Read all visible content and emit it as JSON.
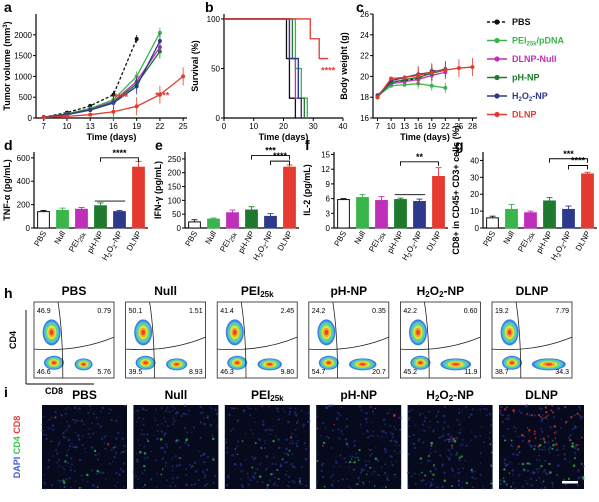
{
  "panel_letters": [
    "a",
    "b",
    "c",
    "d",
    "e",
    "f",
    "g",
    "h",
    "i"
  ],
  "colors": {
    "PBS": "#111111",
    "PEI25k/pDNA": "#39b54a",
    "DLNP-Null": "#c02fb8",
    "pH-NP": "#1f7a2e",
    "H2O2-NP": "#2d3a8c",
    "DLNP": "#e53a2f"
  },
  "legend": [
    "PBS",
    "PEI25k/pDNA",
    "DLNP-Null",
    "pH-NP",
    "H2O2-NP",
    "DLNP"
  ],
  "bar_categories": [
    "PBS",
    "Null",
    "PEI25k",
    "pH-NP",
    "H2O2-NP",
    "DLNP"
  ],
  "chart_data": [
    {
      "id": "a",
      "type": "line",
      "xlabel": "Time (days)",
      "ylabel": "Tumor volume (mm3)",
      "xticks": [
        7,
        10,
        13,
        16,
        19,
        22,
        25
      ],
      "yticks": [
        0,
        500,
        1000,
        1500,
        2000
      ],
      "xlim": [
        6,
        25.5
      ],
      "ylim": [
        0,
        2500
      ],
      "annotations": [
        {
          "text": "****",
          "x": 17,
          "y": 430
        },
        {
          "text": "****",
          "x": 22.3,
          "y": 470
        }
      ],
      "series": [
        {
          "key": "PBS",
          "dashed": true,
          "x": [
            7,
            10,
            13,
            16,
            19
          ],
          "y": [
            20,
            130,
            290,
            560,
            1900
          ]
        },
        {
          "key": "PEI25k/pDNA",
          "x": [
            7,
            10,
            13,
            16,
            19,
            22
          ],
          "y": [
            20,
            100,
            230,
            440,
            1000,
            2050
          ]
        },
        {
          "key": "DLNP-Null",
          "x": [
            7,
            10,
            13,
            16,
            19,
            22
          ],
          "y": [
            20,
            90,
            210,
            400,
            880,
            1700
          ]
        },
        {
          "key": "pH-NP",
          "x": [
            7,
            10,
            13,
            16,
            19,
            22
          ],
          "y": [
            20,
            90,
            200,
            380,
            820,
            1600
          ]
        },
        {
          "key": "H2O2-NP",
          "x": [
            7,
            10,
            13,
            16,
            19,
            22
          ],
          "y": [
            20,
            80,
            190,
            360,
            760,
            1850
          ]
        },
        {
          "key": "DLNP",
          "x": [
            7,
            10,
            13,
            16,
            19,
            22,
            25
          ],
          "y": [
            15,
            40,
            80,
            150,
            280,
            560,
            1000
          ]
        }
      ]
    },
    {
      "id": "b",
      "type": "line",
      "step": true,
      "xlabel": "Time (days)",
      "ylabel": "Survival (%)",
      "xticks": [
        0,
        10,
        20,
        30,
        40
      ],
      "yticks": [
        0,
        50,
        100
      ],
      "xlim": [
        0,
        40
      ],
      "ylim": [
        0,
        105
      ],
      "annotations": [
        {
          "text": "****",
          "x": 35,
          "y": 45
        }
      ],
      "series": [
        {
          "key": "PBS",
          "x": [
            0,
            19,
            21,
            22,
            24
          ],
          "y": [
            100,
            100,
            60,
            20,
            0
          ]
        },
        {
          "key": "PEI25k/pDNA",
          "x": [
            0,
            22,
            24,
            26,
            28
          ],
          "y": [
            100,
            100,
            50,
            20,
            0
          ]
        },
        {
          "key": "DLNP-Null",
          "x": [
            0,
            20,
            22,
            24,
            26
          ],
          "y": [
            100,
            100,
            60,
            20,
            0
          ]
        },
        {
          "key": "pH-NP",
          "x": [
            0,
            21,
            23,
            25,
            27
          ],
          "y": [
            100,
            100,
            60,
            20,
            0
          ]
        },
        {
          "key": "H2O2-NP",
          "x": [
            0,
            20,
            22,
            25,
            26
          ],
          "y": [
            100,
            100,
            60,
            20,
            0
          ]
        },
        {
          "key": "DLNP",
          "x": [
            0,
            26,
            29,
            32,
            35
          ],
          "y": [
            100,
            100,
            80,
            60,
            60
          ]
        }
      ]
    },
    {
      "id": "c",
      "type": "line",
      "xlabel": "Time (days)",
      "ylabel": "Body weight (g)",
      "xticks": [
        7,
        10,
        13,
        16,
        19,
        22,
        25,
        28
      ],
      "yticks": [
        16,
        18,
        20,
        22,
        24,
        26
      ],
      "xlim": [
        6,
        29
      ],
      "ylim": [
        16,
        26
      ],
      "series": [
        {
          "key": "PBS",
          "dashed": true,
          "x": [
            7,
            10,
            13,
            16,
            19,
            22
          ],
          "y": [
            18,
            19.5,
            19.6,
            19.8,
            20.5,
            20.6
          ]
        },
        {
          "key": "PEI25k/pDNA",
          "x": [
            7,
            10,
            13,
            16,
            19,
            22
          ],
          "y": [
            18.1,
            19.1,
            19.2,
            19.3,
            19.1,
            18.9
          ]
        },
        {
          "key": "DLNP-Null",
          "x": [
            7,
            10,
            13,
            16,
            19,
            22
          ],
          "y": [
            18.2,
            19.3,
            19.5,
            19.7,
            20.1,
            20.4
          ]
        },
        {
          "key": "pH-NP",
          "x": [
            7,
            10,
            13,
            16,
            19,
            22
          ],
          "y": [
            18,
            19.4,
            19.7,
            19.9,
            20.3,
            20.6
          ]
        },
        {
          "key": "H2O2-NP",
          "x": [
            7,
            10,
            13,
            16,
            19,
            22
          ],
          "y": [
            18.1,
            19.6,
            19.9,
            20.2,
            20.4,
            20.7
          ]
        },
        {
          "key": "DLNP",
          "x": [
            7,
            10,
            13,
            16,
            19,
            22,
            25,
            28
          ],
          "y": [
            18,
            19.8,
            19.9,
            20.1,
            20.4,
            20.6,
            20.8,
            20.9
          ]
        }
      ]
    },
    {
      "id": "d",
      "type": "bar",
      "ylabel": "TNF-α (pg/mL)",
      "yticks": [
        0,
        200,
        400,
        600
      ],
      "ylim": [
        0,
        650
      ],
      "values": [
        140,
        150,
        160,
        190,
        140,
        520
      ],
      "errors": [
        10,
        20,
        15,
        25,
        10,
        50
      ],
      "sig": [
        {
          "from": 3,
          "to": 5,
          "text": "****",
          "level": 600
        }
      ],
      "line": {
        "from": 3,
        "to": 4,
        "level": 230
      }
    },
    {
      "id": "e",
      "type": "bar",
      "ylabel": "IFN-γ (pg/mL)",
      "yticks": [
        0,
        50,
        100,
        150,
        200,
        250
      ],
      "ylim": [
        0,
        275
      ],
      "values": [
        22,
        32,
        55,
        65,
        42,
        220
      ],
      "errors": [
        8,
        4,
        10,
        12,
        10,
        8
      ],
      "sig": [
        {
          "from": 3,
          "to": 5,
          "text": "***",
          "level": 262
        },
        {
          "from": 4,
          "to": 5,
          "text": "****",
          "level": 242
        }
      ]
    },
    {
      "id": "f",
      "type": "bar",
      "ylabel": "IL-2 (pg/mL)",
      "yticks": [
        0,
        3,
        6,
        9,
        12,
        15
      ],
      "ylim": [
        0,
        15.5
      ],
      "values": [
        5.8,
        6.2,
        5.6,
        5.8,
        5.4,
        10.5
      ],
      "errors": [
        0.2,
        0.6,
        0.8,
        0.3,
        0.5,
        1.8
      ],
      "sig": [
        {
          "from": 3,
          "to": 5,
          "text": "**",
          "level": 13.5
        }
      ],
      "line": {
        "from": 3,
        "to": 4,
        "level": 6.8
      }
    },
    {
      "id": "g",
      "type": "bar",
      "ylabel": "CD8+ in CD45+ CD3+ cells (%)",
      "yticks": [
        0,
        10,
        20,
        30,
        40
      ],
      "ylim": [
        0,
        45
      ],
      "values": [
        6,
        11,
        9,
        16,
        11,
        32
      ],
      "errors": [
        1,
        3,
        1,
        2,
        2,
        1
      ],
      "sig": [
        {
          "from": 3,
          "to": 5,
          "text": "***",
          "level": 41
        },
        {
          "from": 4,
          "to": 5,
          "text": "****",
          "level": 37
        }
      ]
    }
  ],
  "flow": {
    "y_axis": "CD4",
    "x_axis": "CD8",
    "plots": [
      {
        "title": "PBS",
        "q": [
          "46.9",
          "0.79",
          "46.6",
          "5.76"
        ]
      },
      {
        "title": "Null",
        "q": [
          "50.1",
          "1.51",
          "39.5",
          "8.93"
        ]
      },
      {
        "title": "PEI25k",
        "q": [
          "41.4",
          "2.45",
          "46.3",
          "9.80"
        ]
      },
      {
        "title": "pH-NP",
        "q": [
          "24.2",
          "0.35",
          "54.7",
          "20.7"
        ]
      },
      {
        "title": "H2O2-NP",
        "q": [
          "42.2",
          "0.60",
          "45.2",
          "11.9"
        ]
      },
      {
        "title": "DLNP",
        "q": [
          "19.2",
          "7.79",
          "38.7",
          "34.3"
        ]
      }
    ]
  },
  "micro": {
    "stain": [
      "DAPI",
      "CD4",
      "CD8"
    ],
    "stain_colors": [
      "#3c5ad8",
      "#39c24a",
      "#e53a2f"
    ],
    "titles": [
      "PBS",
      "Null",
      "PEI25k",
      "pH-NP",
      "H2O2-NP",
      "DLNP"
    ],
    "green_levels": [
      0.2,
      0.25,
      0.3,
      0.3,
      0.35,
      0.6
    ],
    "red_levels": [
      0.02,
      0.03,
      0.04,
      0.06,
      0.05,
      0.5
    ]
  }
}
